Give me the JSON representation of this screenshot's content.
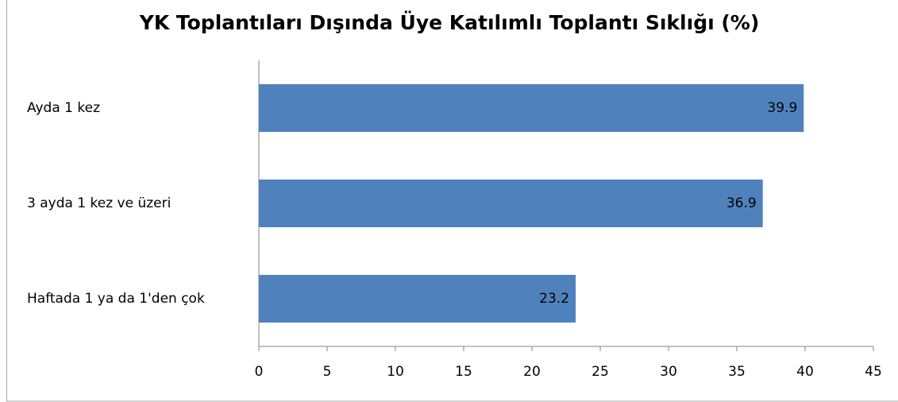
{
  "chart_data": {
    "type": "bar",
    "orientation": "horizontal",
    "title": "YK Toplantıları Dışında Üye Katılımlı Toplantı Sıklığı (%)",
    "categories": [
      "Ayda 1 kez",
      "3 ayda 1 kez ve üzeri",
      "Haftada 1 ya da 1'den çok"
    ],
    "values": [
      39.9,
      36.9,
      23.2
    ],
    "color": "#4f81bd",
    "xlim": [
      0,
      45
    ],
    "xticks": [
      0,
      5,
      10,
      15,
      20,
      25,
      30,
      35,
      40,
      45
    ],
    "grid": false
  }
}
